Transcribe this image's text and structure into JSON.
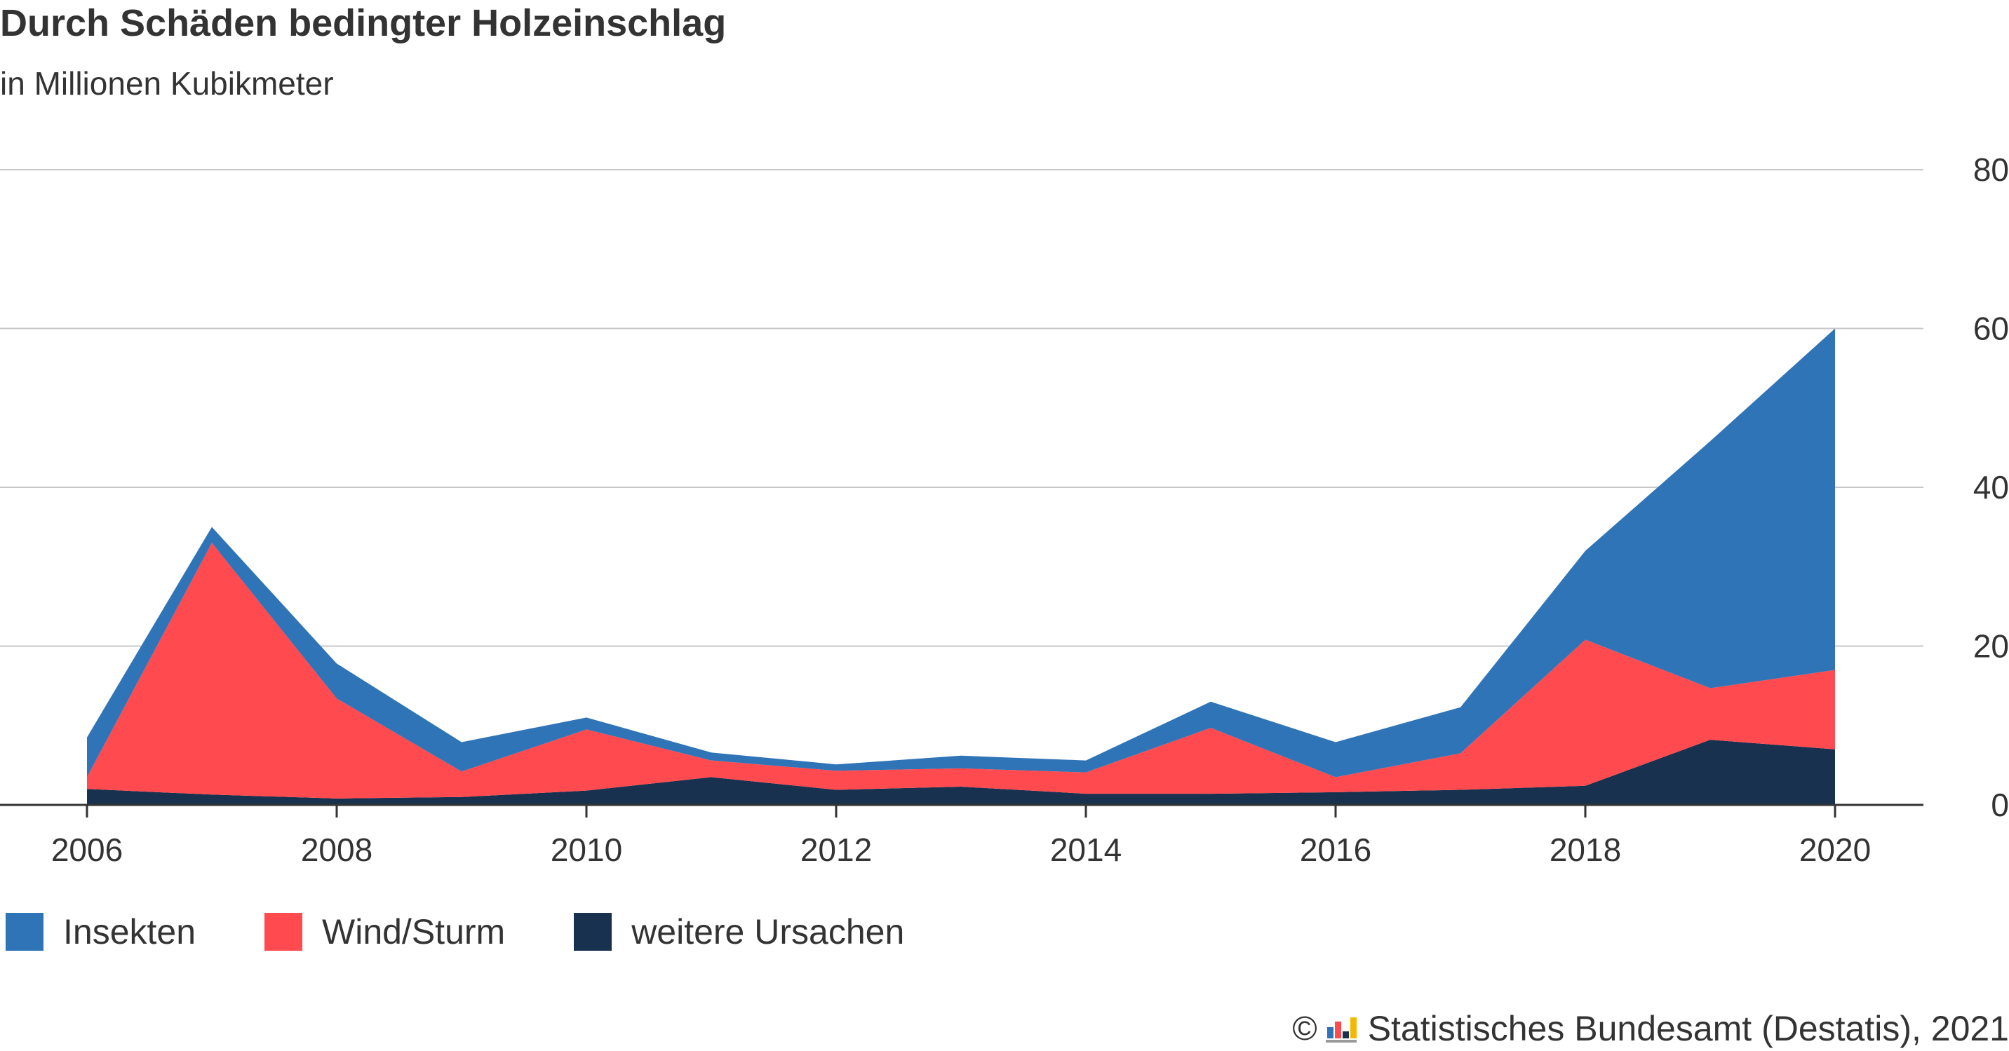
{
  "header": {
    "title": "Durch Schäden bedingter Holzeinschlag",
    "subtitle": "in Millionen Kubikmeter"
  },
  "source": {
    "copyright_symbol": "©",
    "icon": "destatis-logo-icon",
    "text": "Statistisches Bundesamt (Destatis), 2021"
  },
  "chart_data": {
    "type": "area",
    "stacked": true,
    "x": [
      2006,
      2007,
      2008,
      2009,
      2010,
      2011,
      2012,
      2013,
      2014,
      2015,
      2016,
      2017,
      2018,
      2019,
      2020
    ],
    "series": [
      {
        "name": "weitere Ursachen",
        "color": "#17314f",
        "values": [
          2.0,
          1.3,
          0.8,
          1.0,
          1.8,
          3.5,
          1.9,
          2.3,
          1.4,
          1.4,
          1.6,
          1.9,
          2.4,
          8.2,
          7.0
        ]
      },
      {
        "name": "Wind/Sturm",
        "color": "#ff4a4f",
        "values": [
          1.5,
          31.7,
          12.6,
          3.2,
          7.7,
          2.1,
          2.4,
          2.3,
          2.7,
          8.3,
          1.9,
          4.6,
          18.4,
          6.5,
          10.0
        ]
      },
      {
        "name": "Insekten",
        "color": "#2f74b6",
        "values": [
          5.0,
          2.0,
          4.4,
          3.7,
          1.5,
          1.0,
          0.8,
          1.6,
          1.5,
          3.3,
          4.4,
          5.8,
          11.2,
          31.1,
          43.0
        ]
      }
    ],
    "legend_order": [
      "Insekten",
      "Wind/Sturm",
      "weitere Ursachen"
    ],
    "ylim": [
      0,
      80
    ],
    "yticks": [
      0,
      20,
      40,
      60,
      80
    ],
    "xticks": [
      2006,
      2008,
      2010,
      2012,
      2014,
      2016,
      2018,
      2020
    ],
    "xlabel": "",
    "ylabel": "",
    "grid": true,
    "y_axis_side": "right",
    "legend_position": "bottom-left"
  }
}
